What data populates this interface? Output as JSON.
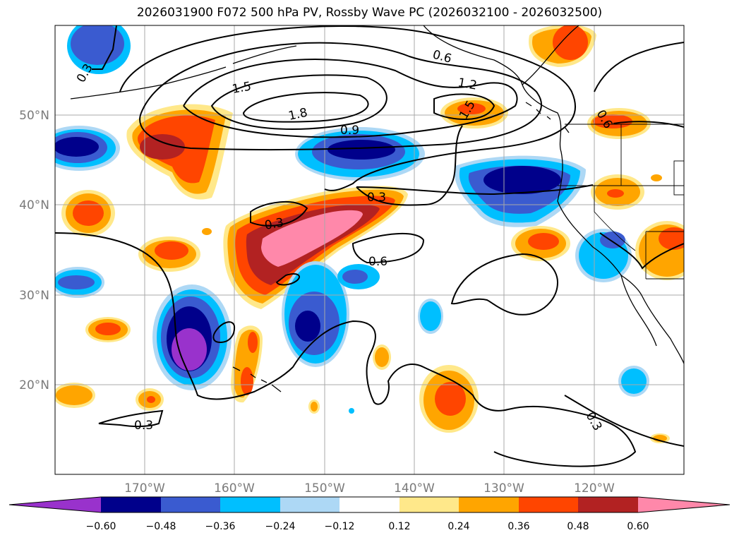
{
  "title": "2026031900 F072 500 hPa PV, Rossby Wave PC (2026032100 - 2026032500)",
  "longitude_labels": [
    "170°W",
    "160°W",
    "150°W",
    "140°W",
    "130°W",
    "120°W"
  ],
  "latitude_labels": [
    "50°N",
    "40°N",
    "30°N",
    "20°N"
  ],
  "colorbar": {
    "tick_labels": [
      "−0.60",
      "−0.48",
      "−0.36",
      "−0.24",
      "−0.12",
      "0.12",
      "0.24",
      "0.36",
      "0.48",
      "0.60"
    ],
    "colors": [
      "#9932cc",
      "#00008b",
      "#3a5bd0",
      "#00bfff",
      "#add8f5",
      "#ffffff",
      "#ffe88a",
      "#ffa500",
      "#ff4500",
      "#b22222",
      "#ff88aa"
    ]
  },
  "contour_labels": [
    "0.3",
    "0.6",
    "1.5",
    "1.8",
    "0.9",
    "1.2",
    "1.5",
    "0.6",
    "0.3",
    "0.3",
    "0.6",
    "0.3",
    "0.3"
  ],
  "map_extent": {
    "lon_min": -180,
    "lon_max": -110,
    "lat_min": 10,
    "lat_max": 60
  },
  "graticule": {
    "lon_step": 10,
    "lat_step": 10
  }
}
